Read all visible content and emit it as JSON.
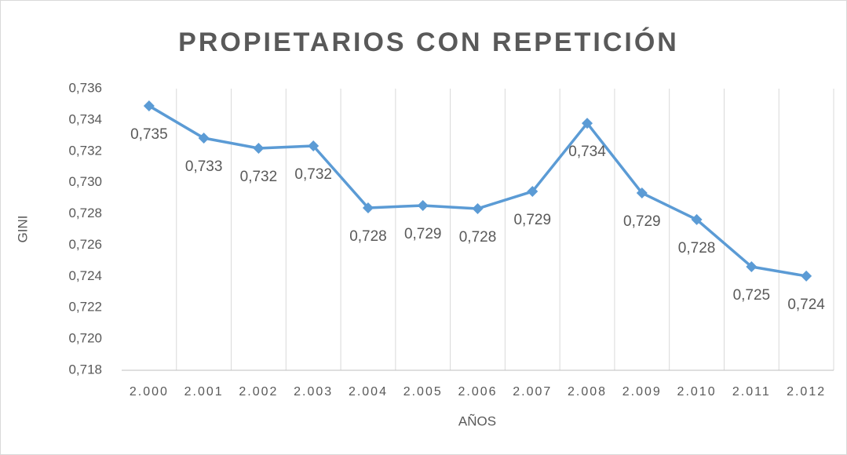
{
  "chart_data": {
    "type": "line",
    "title": "PROPIETARIOS CON REPETICIÓN",
    "x_label": "AÑOS",
    "y_label": "GINI",
    "categories": [
      "2.000",
      "2.001",
      "2.002",
      "2.003",
      "2.004",
      "2.005",
      "2.006",
      "2.007",
      "2.008",
      "2.009",
      "2.010",
      "2.011",
      "2.012"
    ],
    "series": [
      {
        "name": "GINI",
        "color": "#5b9bd5",
        "values": [
          0.7349,
          0.73284,
          0.73219,
          0.73234,
          0.72838,
          0.72853,
          0.72833,
          0.72943,
          0.73379,
          0.72933,
          0.72763,
          0.72462,
          0.72402
        ],
        "value_labels": [
          "0,735",
          "0,733",
          "0,732",
          "0,732",
          "0,728",
          "0,729",
          "0,728",
          "0,729",
          "0,734",
          "0,729",
          "0,728",
          "0,725",
          "0,724"
        ]
      }
    ],
    "ylim": [
      0.718,
      0.736
    ],
    "yticks": [
      {
        "value": 0.718,
        "label": "0,718"
      },
      {
        "value": 0.72,
        "label": "0,720"
      },
      {
        "value": 0.722,
        "label": "0,722"
      },
      {
        "value": 0.724,
        "label": "0,724"
      },
      {
        "value": 0.726,
        "label": "0,726"
      },
      {
        "value": 0.728,
        "label": "0,728"
      },
      {
        "value": 0.73,
        "label": "0,730"
      },
      {
        "value": 0.732,
        "label": "0,732"
      },
      {
        "value": 0.734,
        "label": "0,734"
      },
      {
        "value": 0.736,
        "label": "0,736"
      }
    ],
    "grid": false,
    "legend": false
  }
}
